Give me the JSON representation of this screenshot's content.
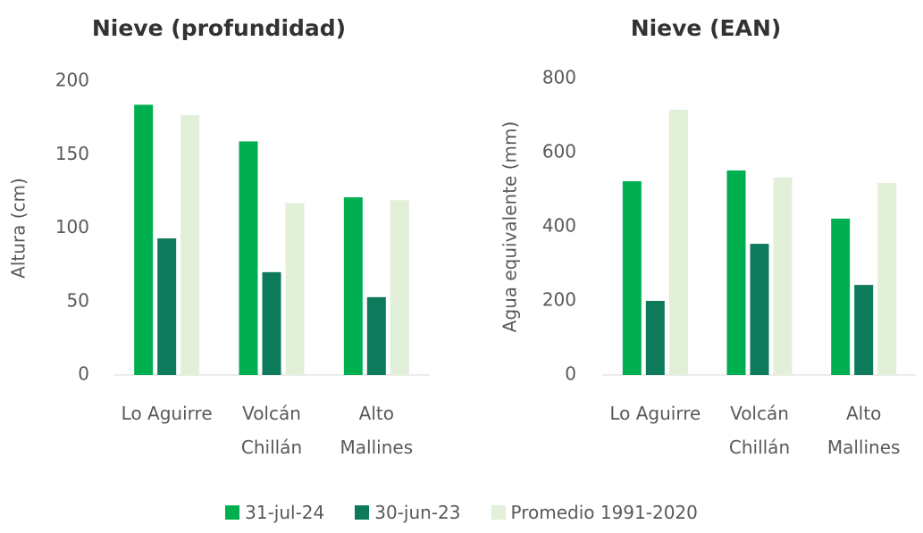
{
  "chart_data": [
    {
      "type": "bar",
      "title": "Nieve (profundidad)",
      "y_label": "Altura (cm)",
      "categories": [
        "Lo Aguirre",
        "Volcán Chillán",
        "Alto Mallines"
      ],
      "series": [
        {
          "name": "31-jul-24",
          "color": "#00b050",
          "values": [
            184,
            159,
            121
          ]
        },
        {
          "name": "30-jun-23",
          "color": "#0e7a5c",
          "values": [
            93,
            70,
            53
          ]
        },
        {
          "name": "Promedio 1991-2020",
          "color": "#e2efd9",
          "values": [
            177,
            117,
            119
          ]
        }
      ],
      "ylim": [
        0,
        200
      ],
      "yticks": [
        0,
        50,
        100,
        150,
        200
      ],
      "grid": false
    },
    {
      "type": "bar",
      "title": "Nieve (EAN)",
      "y_label": "Agua equivalente (mm)",
      "categories": [
        "Lo Aguirre",
        "Volcán Chillán",
        "Alto Mallines"
      ],
      "series": [
        {
          "color": "#00b050",
          "values": [
            523,
            552,
            422
          ]
        },
        {
          "color": "#0e7a5c",
          "values": [
            200,
            354,
            243
          ]
        },
        {
          "color": "#e2efd9",
          "values": [
            716,
            533,
            518
          ]
        }
      ],
      "ylim": [
        0,
        800
      ],
      "yticks": [
        0,
        200,
        400,
        600,
        800
      ],
      "grid": false
    }
  ]
}
